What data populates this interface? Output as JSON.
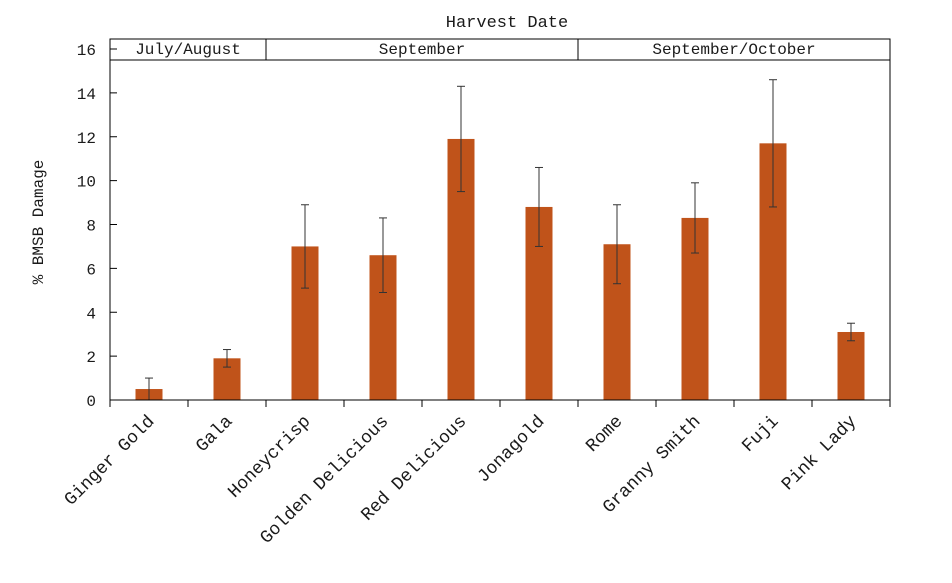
{
  "chart_data": {
    "type": "bar",
    "title": "Harvest Date",
    "xlabel": "",
    "ylabel": "% BMSB Damage",
    "ylim": [
      0,
      16
    ],
    "yticks": [
      0,
      2,
      4,
      6,
      8,
      10,
      12,
      14,
      16
    ],
    "grid": false,
    "bar_color": "#c0531a",
    "harvest_periods": [
      {
        "label": "July/August",
        "start": 0,
        "end": 1
      },
      {
        "label": "September",
        "start": 2,
        "end": 5
      },
      {
        "label": "September/October",
        "start": 6,
        "end": 9
      }
    ],
    "categories": [
      "Ginger Gold",
      "Gala",
      "Honeycrisp",
      "Golden Delicious",
      "Red Delicious",
      "Jonagold",
      "Rome",
      "Granny Smith",
      "Fuji",
      "Pink Lady"
    ],
    "values": [
      0.5,
      1.9,
      7.0,
      6.6,
      11.9,
      8.8,
      7.1,
      8.3,
      11.7,
      3.1
    ],
    "error_low": [
      0.0,
      1.5,
      5.1,
      4.9,
      9.5,
      7.0,
      5.3,
      6.7,
      8.8,
      2.7
    ],
    "error_high": [
      1.0,
      2.3,
      8.9,
      8.3,
      14.3,
      10.6,
      8.9,
      9.9,
      14.6,
      3.5
    ]
  }
}
